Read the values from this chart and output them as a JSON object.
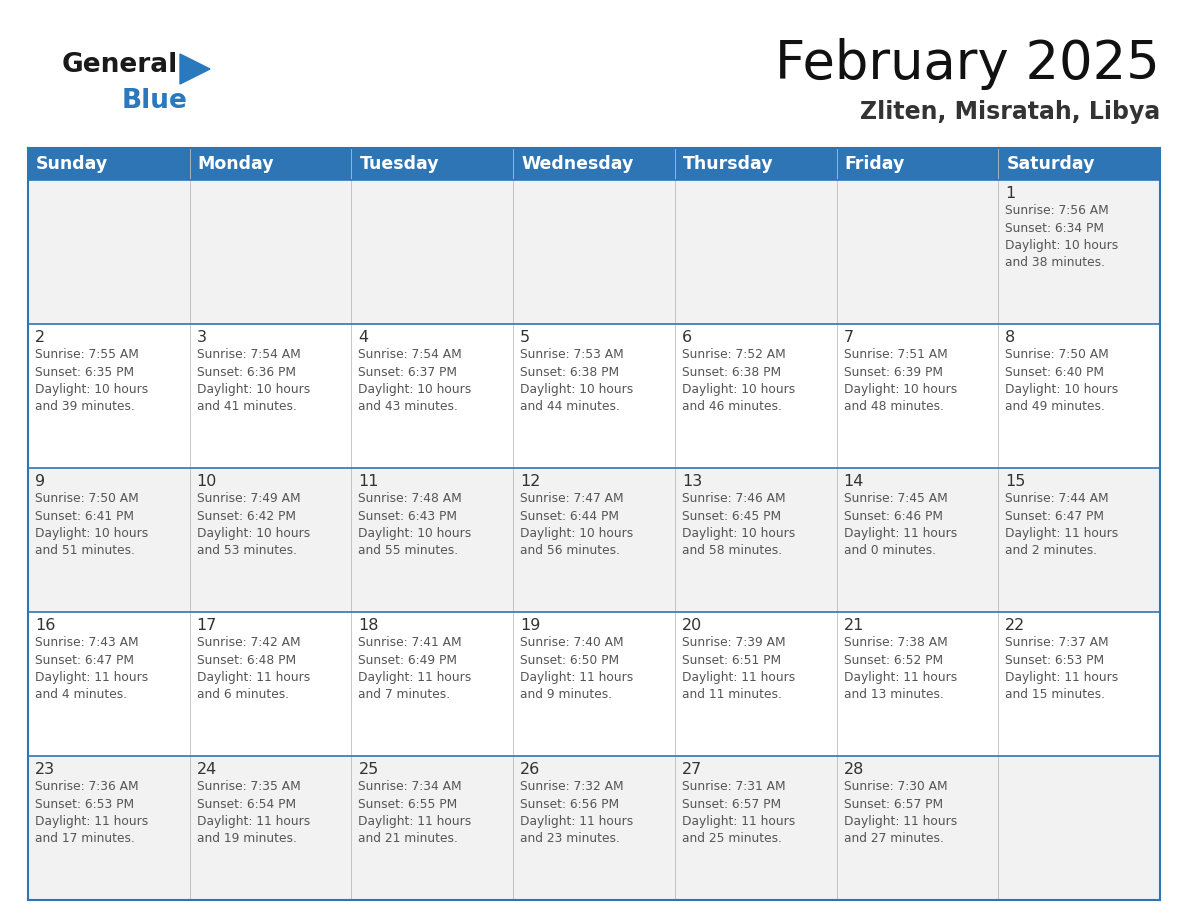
{
  "title": "February 2025",
  "subtitle": "Zliten, Misratah, Libya",
  "days_of_week": [
    "Sunday",
    "Monday",
    "Tuesday",
    "Wednesday",
    "Thursday",
    "Friday",
    "Saturday"
  ],
  "header_bg": "#2E75B6",
  "header_text": "#FFFFFF",
  "row_bg_odd": "#F2F2F2",
  "row_bg_even": "#FFFFFF",
  "border_color": "#2E75B6",
  "text_color": "#555555",
  "day_num_color": "#333333",
  "calendar": [
    [
      {
        "day": null,
        "text": ""
      },
      {
        "day": null,
        "text": ""
      },
      {
        "day": null,
        "text": ""
      },
      {
        "day": null,
        "text": ""
      },
      {
        "day": null,
        "text": ""
      },
      {
        "day": null,
        "text": ""
      },
      {
        "day": 1,
        "text": "Sunrise: 7:56 AM\nSunset: 6:34 PM\nDaylight: 10 hours\nand 38 minutes."
      }
    ],
    [
      {
        "day": 2,
        "text": "Sunrise: 7:55 AM\nSunset: 6:35 PM\nDaylight: 10 hours\nand 39 minutes."
      },
      {
        "day": 3,
        "text": "Sunrise: 7:54 AM\nSunset: 6:36 PM\nDaylight: 10 hours\nand 41 minutes."
      },
      {
        "day": 4,
        "text": "Sunrise: 7:54 AM\nSunset: 6:37 PM\nDaylight: 10 hours\nand 43 minutes."
      },
      {
        "day": 5,
        "text": "Sunrise: 7:53 AM\nSunset: 6:38 PM\nDaylight: 10 hours\nand 44 minutes."
      },
      {
        "day": 6,
        "text": "Sunrise: 7:52 AM\nSunset: 6:38 PM\nDaylight: 10 hours\nand 46 minutes."
      },
      {
        "day": 7,
        "text": "Sunrise: 7:51 AM\nSunset: 6:39 PM\nDaylight: 10 hours\nand 48 minutes."
      },
      {
        "day": 8,
        "text": "Sunrise: 7:50 AM\nSunset: 6:40 PM\nDaylight: 10 hours\nand 49 minutes."
      }
    ],
    [
      {
        "day": 9,
        "text": "Sunrise: 7:50 AM\nSunset: 6:41 PM\nDaylight: 10 hours\nand 51 minutes."
      },
      {
        "day": 10,
        "text": "Sunrise: 7:49 AM\nSunset: 6:42 PM\nDaylight: 10 hours\nand 53 minutes."
      },
      {
        "day": 11,
        "text": "Sunrise: 7:48 AM\nSunset: 6:43 PM\nDaylight: 10 hours\nand 55 minutes."
      },
      {
        "day": 12,
        "text": "Sunrise: 7:47 AM\nSunset: 6:44 PM\nDaylight: 10 hours\nand 56 minutes."
      },
      {
        "day": 13,
        "text": "Sunrise: 7:46 AM\nSunset: 6:45 PM\nDaylight: 10 hours\nand 58 minutes."
      },
      {
        "day": 14,
        "text": "Sunrise: 7:45 AM\nSunset: 6:46 PM\nDaylight: 11 hours\nand 0 minutes."
      },
      {
        "day": 15,
        "text": "Sunrise: 7:44 AM\nSunset: 6:47 PM\nDaylight: 11 hours\nand 2 minutes."
      }
    ],
    [
      {
        "day": 16,
        "text": "Sunrise: 7:43 AM\nSunset: 6:47 PM\nDaylight: 11 hours\nand 4 minutes."
      },
      {
        "day": 17,
        "text": "Sunrise: 7:42 AM\nSunset: 6:48 PM\nDaylight: 11 hours\nand 6 minutes."
      },
      {
        "day": 18,
        "text": "Sunrise: 7:41 AM\nSunset: 6:49 PM\nDaylight: 11 hours\nand 7 minutes."
      },
      {
        "day": 19,
        "text": "Sunrise: 7:40 AM\nSunset: 6:50 PM\nDaylight: 11 hours\nand 9 minutes."
      },
      {
        "day": 20,
        "text": "Sunrise: 7:39 AM\nSunset: 6:51 PM\nDaylight: 11 hours\nand 11 minutes."
      },
      {
        "day": 21,
        "text": "Sunrise: 7:38 AM\nSunset: 6:52 PM\nDaylight: 11 hours\nand 13 minutes."
      },
      {
        "day": 22,
        "text": "Sunrise: 7:37 AM\nSunset: 6:53 PM\nDaylight: 11 hours\nand 15 minutes."
      }
    ],
    [
      {
        "day": 23,
        "text": "Sunrise: 7:36 AM\nSunset: 6:53 PM\nDaylight: 11 hours\nand 17 minutes."
      },
      {
        "day": 24,
        "text": "Sunrise: 7:35 AM\nSunset: 6:54 PM\nDaylight: 11 hours\nand 19 minutes."
      },
      {
        "day": 25,
        "text": "Sunrise: 7:34 AM\nSunset: 6:55 PM\nDaylight: 11 hours\nand 21 minutes."
      },
      {
        "day": 26,
        "text": "Sunrise: 7:32 AM\nSunset: 6:56 PM\nDaylight: 11 hours\nand 23 minutes."
      },
      {
        "day": 27,
        "text": "Sunrise: 7:31 AM\nSunset: 6:57 PM\nDaylight: 11 hours\nand 25 minutes."
      },
      {
        "day": 28,
        "text": "Sunrise: 7:30 AM\nSunset: 6:57 PM\nDaylight: 11 hours\nand 27 minutes."
      },
      {
        "day": null,
        "text": ""
      }
    ]
  ],
  "logo_general_color": "#1a1a1a",
  "logo_blue_color": "#2979BC",
  "title_fontsize": 38,
  "subtitle_fontsize": 17,
  "header_fontsize": 12.5,
  "day_num_fontsize": 11.5,
  "cell_text_fontsize": 8.8
}
